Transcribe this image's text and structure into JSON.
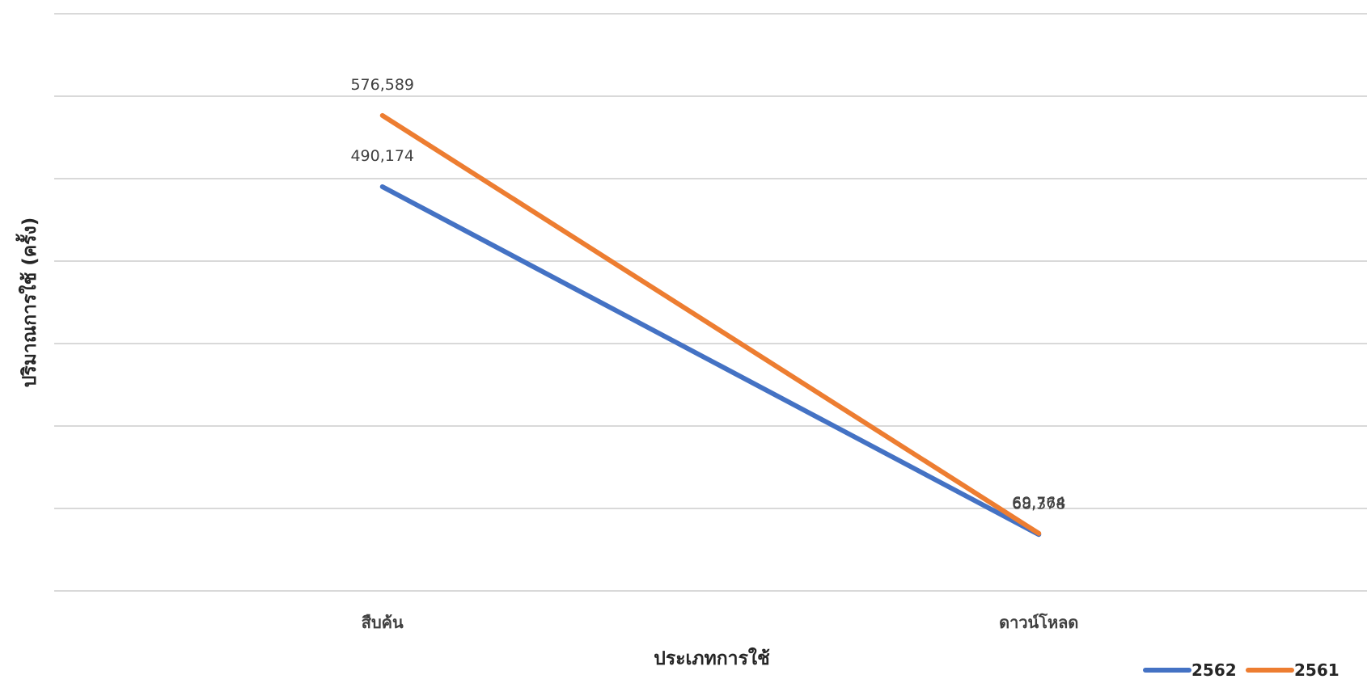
{
  "chart_data": {
    "type": "line",
    "title": "",
    "xlabel": "ประเภทการใช้",
    "ylabel": "ปริมาณการใช้ (ครั้ง)",
    "categories": [
      "สืบค้น",
      "ดาวน์โหลด"
    ],
    "ylim": [
      0,
      700000
    ],
    "ytick_step": 100000,
    "grid": true,
    "legend_position": "bottom-right",
    "series": [
      {
        "name": "2562",
        "color": "#4472c4",
        "values": [
          490174,
          68378
        ],
        "labels": [
          "490,174",
          "68,378"
        ]
      },
      {
        "name": "2561",
        "color": "#ed7d31",
        "values": [
          576589,
          69764
        ],
        "labels": [
          "576,589",
          "69,764"
        ]
      }
    ]
  }
}
